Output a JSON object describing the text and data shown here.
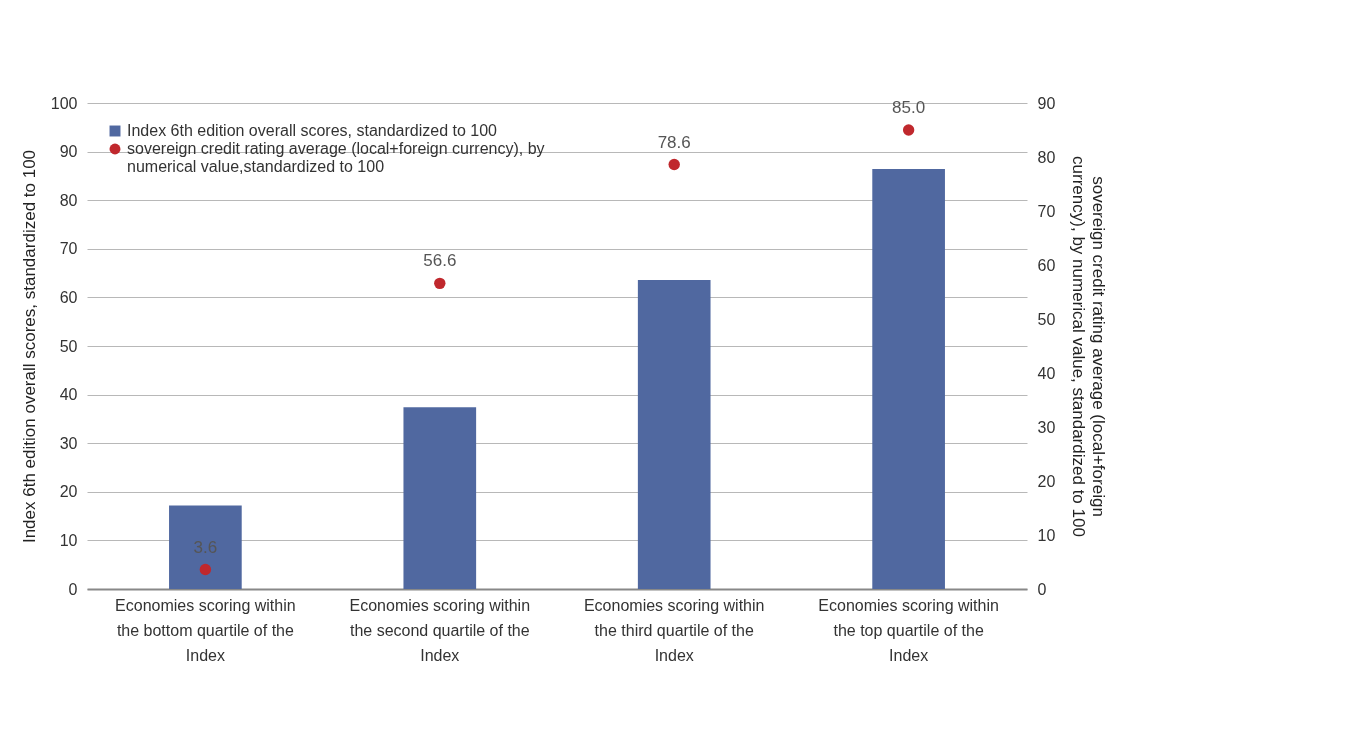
{
  "chart_data": {
    "type": "bar",
    "categories": [
      "Economies scoring within the bottom quartile of the Index",
      "Economies scoring within the second quartile of the Index",
      "Economies scoring within the third quartile of the Index",
      "Economies scoring within the top quartile of the Index"
    ],
    "ylabel": "Index 6th edition overall scores, standardized to 100",
    "y2label": "sovereign credit  rating average (local+foreign currency), by numerical value, standardized to 100",
    "series": [
      {
        "name": "Index 6th edition overall scores, standardized to 100",
        "color": "#5068a0",
        "values": [
          17.2,
          37.4,
          63.6,
          86.4
        ]
      },
      {
        "name": "sovereign credit rating average (local+foreign currency), by numerical value,standardized to 100",
        "type": "scatter",
        "axis": "y2",
        "color": "#c0282d",
        "values": [
          3.6,
          56.6,
          78.6,
          85.0
        ],
        "value_labels": [
          "3.6",
          "56.6",
          "78.6",
          "85.0"
        ]
      }
    ],
    "ylim": [
      0,
      100
    ],
    "yticks": [
      0,
      10,
      20,
      30,
      40,
      50,
      60,
      70,
      80,
      90,
      100
    ],
    "y2lim": [
      0,
      90
    ],
    "y2ticks": [
      0,
      10,
      20,
      30,
      40,
      50,
      60,
      70,
      80,
      90
    ],
    "grid": "y",
    "legend": "top left",
    "marker": "circle"
  }
}
